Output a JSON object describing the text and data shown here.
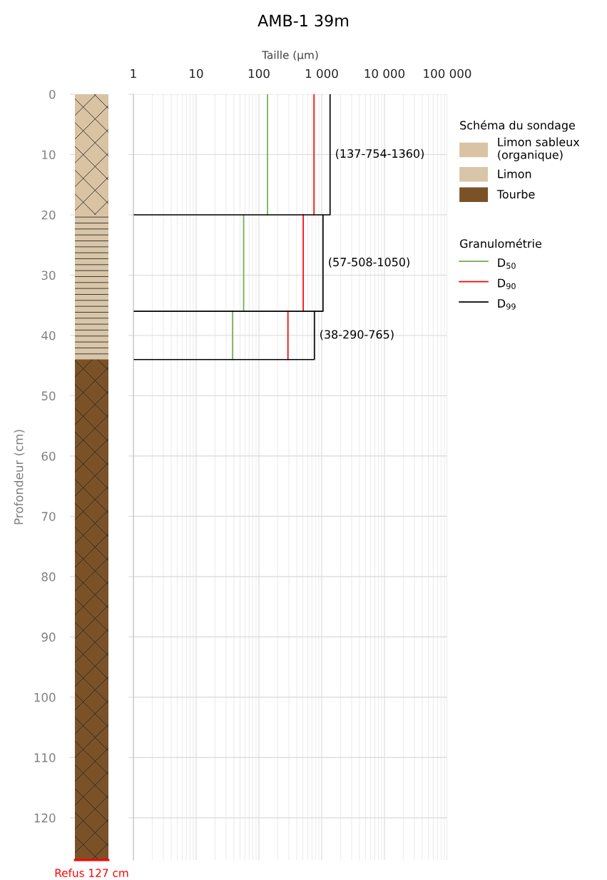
{
  "chart_data": [
    {
      "type": "bar",
      "stacked": true,
      "categories": [
        null
      ],
      "ylabel": "Profondeur (cm)",
      "ylim": [
        127,
        0
      ],
      "yticks": [
        0,
        10,
        20,
        30,
        40,
        50,
        60,
        70,
        80,
        90,
        100,
        110,
        120
      ],
      "tick_labels": "y",
      "legend": "right",
      "legend_title": "Schéma du sondage",
      "series": [
        {
          "name": "Limon sableux\n(organique)",
          "color": "#d9c3a3",
          "values": [
            20
          ]
        },
        {
          "name": "Limon",
          "color": "#d9c6a8",
          "values": [
            24
          ]
        },
        {
          "name": "Tourbe",
          "color": "#7b5228",
          "values": [
            83
          ]
        }
      ],
      "ref_lines": [
        {
          "axis": "y",
          "value": 127,
          "label": "Refus 127 cm",
          "color": "#ff0000"
        }
      ]
    },
    {
      "type": "line",
      "title": "AMB-1 39m",
      "xlabel": "Taille (µm)",
      "log": "x",
      "xlim": [
        1,
        100000
      ],
      "xticks": [
        1,
        10,
        {
          "value": 100,
          "label": "100"
        },
        {
          "value": 1000,
          "label": "1 000"
        },
        {
          "value": 10000,
          "label": "10 000"
        },
        {
          "value": 100000,
          "label": "100 000"
        }
      ],
      "ylim": [
        127,
        0
      ],
      "yticks": [
        0,
        10,
        20,
        30,
        40,
        50,
        60,
        70,
        80,
        90,
        100,
        110,
        120
      ],
      "tick_labels": "x",
      "grid": true,
      "legend": "right",
      "legend_title": "Granulométrie",
      "series": [
        {
          "name": "D$_{50}$",
          "color": "#70ad47",
          "x": [
            137,
            137,
            null,
            57,
            57,
            null,
            38,
            38
          ],
          "values": [
            0,
            20,
            null,
            20,
            36,
            null,
            36,
            44
          ]
        },
        {
          "name": "D$_{90}$",
          "color": "#ff0000",
          "x": [
            754,
            754,
            null,
            508,
            508,
            null,
            290,
            290
          ],
          "values": [
            0,
            20,
            null,
            20,
            36,
            null,
            36,
            44
          ]
        },
        {
          "name": "D$_{99}$",
          "color": "#000000",
          "x": [
            1360,
            1360,
            1,
            null,
            1050,
            1050,
            1,
            null,
            765,
            765,
            1
          ],
          "values": [
            0,
            20,
            20,
            null,
            20,
            36,
            36,
            null,
            36,
            44,
            44
          ]
        }
      ],
      "annotations": [
        {
          "text": "(137-754-1360)",
          "x": 1360,
          "y": 10
        },
        {
          "text": "(57-508-1050)",
          "x": 1050,
          "y": 28
        },
        {
          "text": "(38-290-765)",
          "x": 765,
          "y": 40
        }
      ]
    }
  ]
}
